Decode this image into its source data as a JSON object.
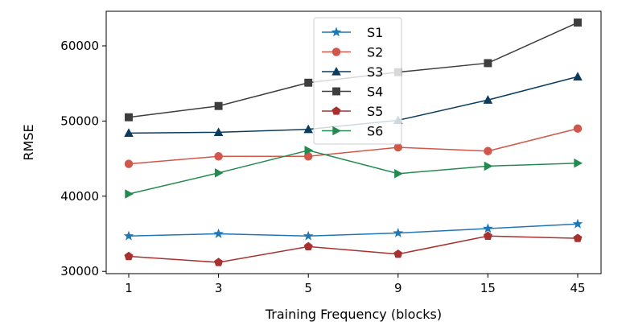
{
  "chart_data": {
    "type": "line",
    "categories": [
      "1",
      "3",
      "5",
      "9",
      "15",
      "45"
    ],
    "xlabel": "Training Frequency (blocks)",
    "ylabel": "RMSE",
    "ylim": [
      29700,
      64600
    ],
    "yticks": [
      30000,
      40000,
      50000,
      60000
    ],
    "grid": false,
    "legend": "top-center",
    "series": [
      {
        "name": "S1",
        "color": "#1f77b4",
        "marker": "star",
        "values": [
          34700,
          35000,
          34700,
          35100,
          35700,
          36300
        ]
      },
      {
        "name": "S2",
        "color": "#d1574a",
        "marker": "circle",
        "values": [
          44300,
          45300,
          45300,
          46500,
          46000,
          49000
        ]
      },
      {
        "name": "S3",
        "color": "#0b3c5d",
        "marker": "triangle-up",
        "values": [
          48400,
          48500,
          48900,
          50100,
          52800,
          55900
        ]
      },
      {
        "name": "S4",
        "color": "#3d3d3d",
        "marker": "square",
        "values": [
          50500,
          52000,
          55100,
          56500,
          57700,
          63100
        ]
      },
      {
        "name": "S5",
        "color": "#a8302e",
        "marker": "pentagon",
        "values": [
          32000,
          31200,
          33300,
          32300,
          34700,
          34400
        ]
      },
      {
        "name": "S6",
        "color": "#238b4f",
        "marker": "triangle-right",
        "values": [
          40300,
          43100,
          46100,
          43000,
          44000,
          44400
        ]
      }
    ]
  }
}
